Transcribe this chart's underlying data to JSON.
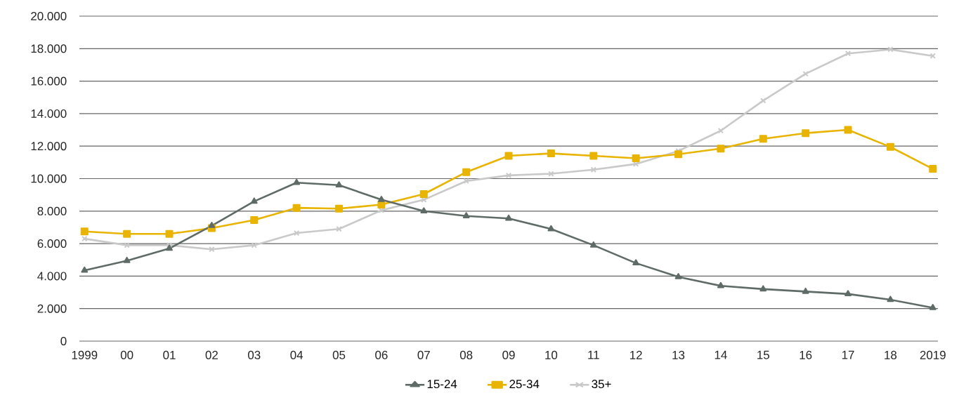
{
  "chart_data": {
    "type": "line",
    "categories": [
      "1999",
      "00",
      "01",
      "02",
      "03",
      "04",
      "05",
      "06",
      "07",
      "08",
      "09",
      "10",
      "11",
      "12",
      "13",
      "14",
      "15",
      "16",
      "17",
      "18",
      "2019"
    ],
    "series": [
      {
        "name": "15-24",
        "color": "#5f6b66",
        "marker": "triangle",
        "values": [
          4350,
          4950,
          5700,
          7100,
          8600,
          9750,
          9600,
          8700,
          8000,
          7700,
          7550,
          6900,
          5900,
          4800,
          3950,
          3400,
          3200,
          3050,
          2900,
          2550,
          2050
        ]
      },
      {
        "name": "25-34",
        "color": "#e8b400",
        "marker": "square",
        "values": [
          6750,
          6600,
          6600,
          6950,
          7450,
          8200,
          8150,
          8400,
          9050,
          10400,
          11400,
          11550,
          11400,
          11250,
          11500,
          11850,
          12450,
          12800,
          13000,
          11950,
          10600
        ]
      },
      {
        "name": "35+",
        "color": "#c8c9c8",
        "marker": "cross",
        "values": [
          6300,
          5900,
          5900,
          5650,
          5900,
          6650,
          6900,
          8050,
          8700,
          9850,
          10200,
          10300,
          10550,
          10900,
          11700,
          12950,
          14800,
          16450,
          17700,
          17950,
          17550
        ]
      }
    ],
    "ylim": [
      0,
      20000
    ],
    "yticks": [
      {
        "value": 0,
        "label": "0"
      },
      {
        "value": 2000,
        "label": "2.000"
      },
      {
        "value": 4000,
        "label": "4.000"
      },
      {
        "value": 6000,
        "label": "6.000"
      },
      {
        "value": 8000,
        "label": "8.000"
      },
      {
        "value": 10000,
        "label": "10.000"
      },
      {
        "value": 12000,
        "label": "12.000"
      },
      {
        "value": 14000,
        "label": "14.000"
      },
      {
        "value": 16000,
        "label": "16.000"
      },
      {
        "value": 18000,
        "label": "18.000"
      },
      {
        "value": 20000,
        "label": "20.000"
      }
    ],
    "grid": "y",
    "legend": "bottom",
    "line_style": "solid"
  }
}
